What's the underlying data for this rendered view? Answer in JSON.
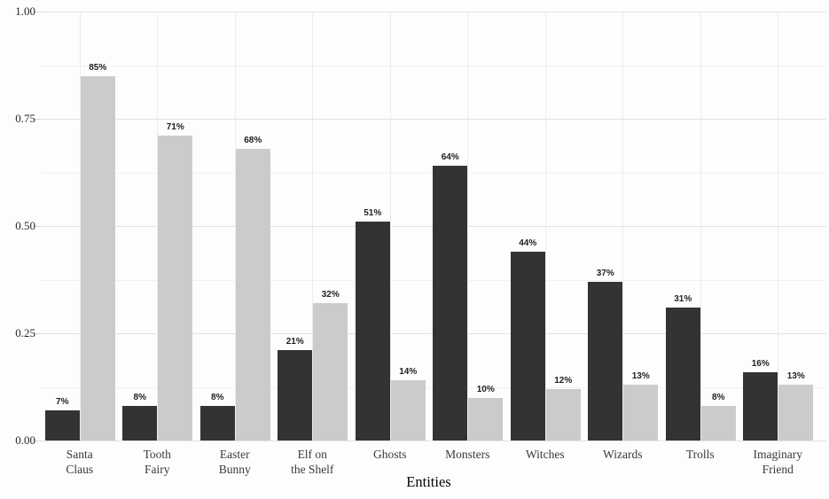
{
  "chart_data": {
    "type": "bar",
    "title": "",
    "xlabel": "Entities",
    "ylabel": "",
    "ylim": [
      0,
      1.0
    ],
    "y_major_ticks": [
      0,
      0.25,
      0.5,
      0.75,
      1.0
    ],
    "y_tick_labels": [
      "0.00",
      "0.25",
      "0.50",
      "0.75",
      "1.00"
    ],
    "y_minor_ticks": [
      0.125,
      0.375,
      0.625,
      0.875
    ],
    "grid": "horizontal major+minor lines, vertical line at each category center",
    "legend": "none",
    "categories": [
      "Santa Claus",
      "Tooth Fairy",
      "Easter Bunny",
      "Elf on the Shelf",
      "Ghosts",
      "Monsters",
      "Witches",
      "Wizards",
      "Trolls",
      "Imaginary Friend"
    ],
    "category_label_lines": [
      [
        "Santa",
        "Claus"
      ],
      [
        "Tooth",
        "Fairy"
      ],
      [
        "Easter",
        "Bunny"
      ],
      [
        "Elf on",
        "the Shelf"
      ],
      [
        "Ghosts"
      ],
      [
        "Monsters"
      ],
      [
        "Witches"
      ],
      [
        "Wizards"
      ],
      [
        "Trolls"
      ],
      [
        "Imaginary",
        "Friend"
      ]
    ],
    "series": [
      {
        "name": "dark-bars",
        "color": "#333333",
        "values": [
          0.07,
          0.08,
          0.08,
          0.21,
          0.51,
          0.64,
          0.44,
          0.37,
          0.31,
          0.16
        ],
        "labels": [
          "7%",
          "8%",
          "8%",
          "21%",
          "51%",
          "64%",
          "44%",
          "37%",
          "31%",
          "16%"
        ]
      },
      {
        "name": "light-bars",
        "color": "#cbcbcb",
        "values": [
          0.85,
          0.71,
          0.68,
          0.32,
          0.14,
          0.1,
          0.12,
          0.13,
          0.08,
          0.13
        ],
        "labels": [
          "85%",
          "71%",
          "68%",
          "32%",
          "14%",
          "10%",
          "12%",
          "13%",
          "8%",
          "13%"
        ]
      }
    ]
  },
  "colors": {
    "background": "#fdfdfd",
    "grid_major": "#e2e2e2",
    "grid_minor": "#f1f1f1",
    "grid_vertical": "#ececec",
    "axis_text": "#262626",
    "category_text": "#3a3a3a",
    "value_label_text": "#1f1f1f"
  }
}
